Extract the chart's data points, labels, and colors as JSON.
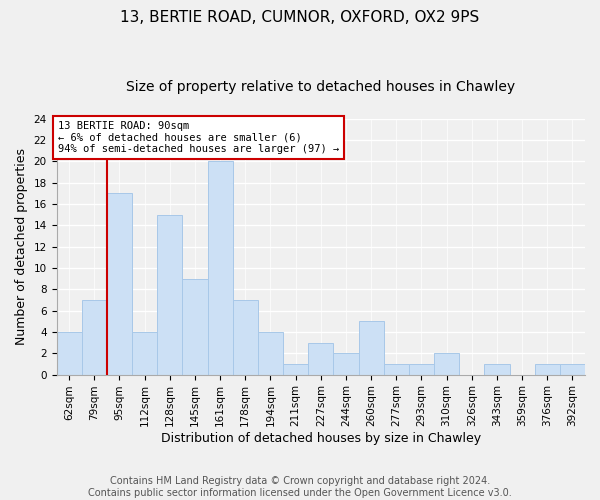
{
  "title": "13, BERTIE ROAD, CUMNOR, OXFORD, OX2 9PS",
  "subtitle": "Size of property relative to detached houses in Chawley",
  "xlabel": "Distribution of detached houses by size in Chawley",
  "ylabel": "Number of detached properties",
  "bin_labels": [
    "62sqm",
    "79sqm",
    "95sqm",
    "112sqm",
    "128sqm",
    "145sqm",
    "161sqm",
    "178sqm",
    "194sqm",
    "211sqm",
    "227sqm",
    "244sqm",
    "260sqm",
    "277sqm",
    "293sqm",
    "310sqm",
    "326sqm",
    "343sqm",
    "359sqm",
    "376sqm",
    "392sqm"
  ],
  "bar_heights": [
    4,
    7,
    17,
    4,
    15,
    9,
    20,
    7,
    4,
    1,
    3,
    2,
    5,
    1,
    1,
    2,
    0,
    1,
    0,
    1,
    1
  ],
  "bar_color": "#cce0f5",
  "bar_edge_color": "#a8c8e8",
  "highlight_line_color": "#cc0000",
  "annotation_line1": "13 BERTIE ROAD: 90sqm",
  "annotation_line2": "← 6% of detached houses are smaller (6)",
  "annotation_line3": "94% of semi-detached houses are larger (97) →",
  "annotation_box_color": "#ffffff",
  "annotation_box_edge_color": "#cc0000",
  "ylim": [
    0,
    24
  ],
  "yticks": [
    0,
    2,
    4,
    6,
    8,
    10,
    12,
    14,
    16,
    18,
    20,
    22,
    24
  ],
  "footer_text": "Contains HM Land Registry data © Crown copyright and database right 2024.\nContains public sector information licensed under the Open Government Licence v3.0.",
  "title_fontsize": 11,
  "subtitle_fontsize": 10,
  "xlabel_fontsize": 9,
  "ylabel_fontsize": 9,
  "tick_fontsize": 7.5,
  "footer_fontsize": 7,
  "background_color": "#f0f0f0"
}
